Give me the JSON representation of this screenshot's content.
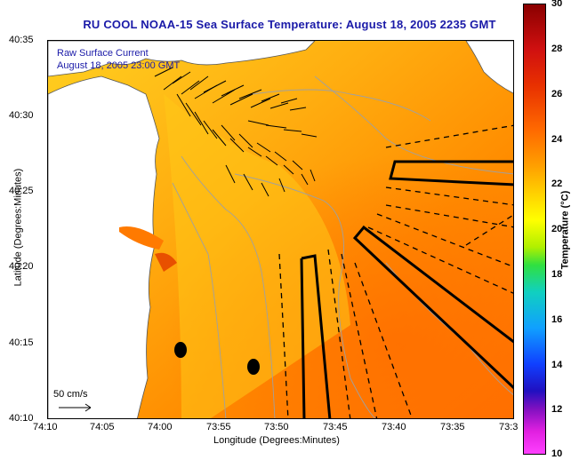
{
  "title": "RU COOL  NOAA-15  Sea Surface Temperature:  August 18, 2005 2235 GMT",
  "legend": {
    "line1": "Raw Surface Current",
    "line2": "August 18, 2005 23:00 GMT",
    "scale_label": "50 cm/s"
  },
  "axes": {
    "xlabel": "Longitude (Degrees:Minutes)",
    "ylabel": "Latitude (Degrees:Minutes)",
    "xticks": [
      "74:10",
      "74:05",
      "74:00",
      "73:55",
      "73:50",
      "73:45",
      "73:40",
      "73:35",
      "73:3"
    ],
    "yticks": [
      "40:35",
      "40:30",
      "40:25",
      "40:20",
      "40:15",
      "40:10"
    ]
  },
  "colorbar": {
    "label": "Temperature (°C)",
    "ticks": [
      "30",
      "28",
      "26",
      "24",
      "22",
      "20",
      "18",
      "16",
      "14",
      "12",
      "10"
    ],
    "min": 10,
    "max": 30
  },
  "colors": {
    "title": "#1a1aa8",
    "land": "#ffffff",
    "sea_warm": "#ff8c00",
    "sea_cool": "#ffcc20"
  }
}
